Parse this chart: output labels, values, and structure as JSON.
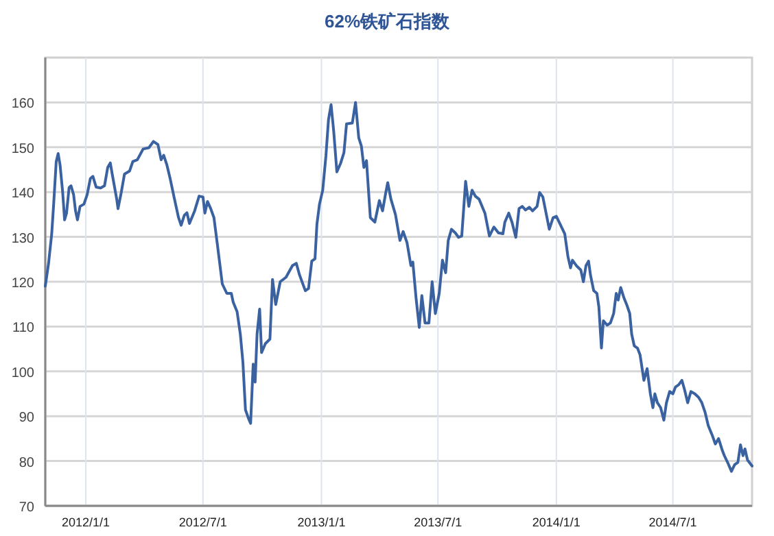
{
  "chart_data": {
    "type": "line",
    "title": "62%铁矿石指数",
    "x": [
      "2011-10-30",
      "2011-11-04",
      "2011-11-09",
      "2011-11-12",
      "2011-11-16",
      "2011-11-19",
      "2011-11-22",
      "2011-11-26",
      "2011-11-29",
      "2011-12-02",
      "2011-12-06",
      "2011-12-09",
      "2011-12-13",
      "2011-12-16",
      "2011-12-19",
      "2011-12-23",
      "2011-12-29",
      "2012-01-03",
      "2012-01-08",
      "2012-01-12",
      "2012-01-17",
      "2012-01-24",
      "2012-01-30",
      "2012-02-04",
      "2012-02-08",
      "2012-02-11",
      "2012-02-18",
      "2012-02-20",
      "2012-02-25",
      "2012-03-01",
      "2012-03-09",
      "2012-03-14",
      "2012-03-21",
      "2012-03-30",
      "2012-04-08",
      "2012-04-15",
      "2012-04-22",
      "2012-04-27",
      "2012-05-01",
      "2012-05-06",
      "2012-05-11",
      "2012-05-17",
      "2012-05-24",
      "2012-05-28",
      "2012-06-02",
      "2012-06-06",
      "2012-06-10",
      "2012-06-18",
      "2012-06-25",
      "2012-07-01",
      "2012-07-04",
      "2012-07-08",
      "2012-07-13",
      "2012-07-18",
      "2012-07-23",
      "2012-07-31",
      "2012-08-07",
      "2012-08-14",
      "2012-08-17",
      "2012-08-23",
      "2012-08-28",
      "2012-09-01",
      "2012-09-05",
      "2012-09-10",
      "2012-09-13",
      "2012-09-17",
      "2012-09-20",
      "2012-09-23",
      "2012-09-27",
      "2012-09-30",
      "2012-10-06",
      "2012-10-13",
      "2012-10-17",
      "2012-10-22",
      "2012-10-29",
      "2012-11-07",
      "2012-11-17",
      "2012-11-23",
      "2012-11-28",
      "2012-12-07",
      "2012-12-12",
      "2012-12-17",
      "2012-12-22",
      "2012-12-25",
      "2012-12-29",
      "2013-01-03",
      "2013-01-08",
      "2013-01-12",
      "2013-01-16",
      "2013-01-20",
      "2013-01-25",
      "2013-01-31",
      "2013-02-05",
      "2013-02-09",
      "2013-02-18",
      "2013-02-23",
      "2013-02-28",
      "2013-03-04",
      "2013-03-08",
      "2013-03-12",
      "2013-03-18",
      "2013-03-25",
      "2013-04-01",
      "2013-04-06",
      "2013-04-11",
      "2013-04-14",
      "2013-04-19",
      "2013-04-26",
      "2013-05-03",
      "2013-05-08",
      "2013-05-14",
      "2013-05-20",
      "2013-05-23",
      "2013-05-28",
      "2013-06-02",
      "2013-06-06",
      "2013-06-11",
      "2013-06-17",
      "2013-06-22",
      "2013-06-27",
      "2013-07-03",
      "2013-07-08",
      "2013-07-13",
      "2013-07-17",
      "2013-07-22",
      "2013-07-28",
      "2013-08-02",
      "2013-08-07",
      "2013-08-13",
      "2013-08-18",
      "2013-08-23",
      "2013-08-28",
      "2013-09-03",
      "2013-09-12",
      "2013-09-19",
      "2013-09-26",
      "2013-10-03",
      "2013-10-10",
      "2013-10-13",
      "2013-10-19",
      "2013-10-24",
      "2013-10-30",
      "2013-11-04",
      "2013-11-09",
      "2013-11-14",
      "2013-11-20",
      "2013-11-25",
      "2013-12-02",
      "2013-12-06",
      "2013-12-11",
      "2013-12-16",
      "2013-12-21",
      "2013-12-27",
      "2014-01-01",
      "2014-01-07",
      "2014-01-14",
      "2014-01-19",
      "2014-01-23",
      "2014-01-26",
      "2014-02-01",
      "2014-02-08",
      "2014-02-12",
      "2014-02-16",
      "2014-02-20",
      "2014-02-23",
      "2014-02-28",
      "2014-03-05",
      "2014-03-08",
      "2014-03-12",
      "2014-03-15",
      "2014-03-21",
      "2014-03-26",
      "2014-03-31",
      "2014-04-04",
      "2014-04-07",
      "2014-04-11",
      "2014-04-16",
      "2014-04-21",
      "2014-04-25",
      "2014-04-28",
      "2014-05-02",
      "2014-05-07",
      "2014-05-11",
      "2014-05-17",
      "2014-05-22",
      "2014-05-27",
      "2014-05-31",
      "2014-06-03",
      "2014-06-07",
      "2014-06-12",
      "2014-06-17",
      "2014-06-21",
      "2014-06-26",
      "2014-07-01",
      "2014-07-05",
      "2014-07-10",
      "2014-07-15",
      "2014-07-19",
      "2014-07-24",
      "2014-07-29",
      "2014-08-04",
      "2014-08-10",
      "2014-08-15",
      "2014-08-20",
      "2014-08-25",
      "2014-08-31",
      "2014-09-05",
      "2014-09-10",
      "2014-09-16",
      "2014-09-19",
      "2014-09-24",
      "2014-09-30",
      "2014-10-05",
      "2014-10-10",
      "2014-10-14",
      "2014-10-18",
      "2014-10-21",
      "2014-10-25",
      "2014-11-01"
    ],
    "series": [
      {
        "color": "#3b62a0",
        "values": [
          119,
          124,
          130.7,
          137.3,
          146.8,
          148.6,
          146,
          140,
          133.8,
          135.3,
          141,
          141.4,
          139.4,
          135.8,
          133.8,
          136.8,
          137.3,
          139.4,
          143,
          143.5,
          141.1,
          140.9,
          141.4,
          145.5,
          146.5,
          144,
          138.4,
          136.3,
          139.9,
          144,
          144.7,
          146.8,
          147.2,
          149.6,
          149.9,
          151.3,
          150.6,
          147.2,
          148.2,
          146,
          143,
          138.9,
          134.3,
          132.6,
          134.8,
          135.4,
          133,
          135.8,
          139.1,
          138.9,
          135.3,
          137.9,
          136.3,
          134.3,
          128.7,
          119.5,
          117.4,
          117.4,
          115.4,
          113.3,
          108.3,
          102.1,
          91.4,
          89.4,
          88.4,
          101.6,
          97.6,
          108.3,
          113.9,
          104.2,
          106.2,
          107.2,
          120.5,
          114.9,
          120,
          121,
          123.6,
          124.1,
          121.5,
          118,
          118.5,
          124.6,
          125.1,
          132.8,
          137.3,
          140.4,
          148.1,
          156.2,
          159.5,
          153.7,
          144.5,
          146.5,
          148.8,
          155.2,
          155.4,
          160,
          152.1,
          150.3,
          145.5,
          147,
          134.3,
          133.3,
          138.1,
          135.8,
          139.9,
          142.1,
          138.4,
          135,
          129.2,
          131.2,
          128.7,
          123.6,
          124.4,
          116.4,
          109.8,
          116.9,
          110.8,
          110.8,
          120,
          112.9,
          117.4,
          124.8,
          122,
          129.2,
          131.7,
          130.9,
          129.9,
          130.2,
          142.4,
          136.8,
          140.4,
          139.1,
          138.4,
          135.3,
          130.2,
          132.2,
          130.9,
          130.7,
          133.3,
          135.3,
          133.3,
          129.9,
          136.3,
          136.8,
          136,
          136.6,
          135.8,
          136.8,
          139.9,
          138.9,
          135.3,
          131.7,
          134.3,
          134.6,
          132.8,
          130.7,
          125.6,
          123.1,
          124.8,
          123.6,
          122.6,
          120,
          123.6,
          124.6,
          121.5,
          118,
          117.4,
          114.4,
          105.2,
          111.3,
          110.3,
          110.8,
          112.9,
          117.4,
          115.9,
          118.7,
          116.4,
          114.6,
          112.9,
          108.3,
          105.7,
          105.2,
          103.7,
          98,
          100.6,
          95,
          91.9,
          95,
          93,
          91.9,
          89.1,
          93,
          95.5,
          95,
          96.5,
          97,
          98,
          96,
          93,
          95.5,
          95,
          94.2,
          93,
          90.9,
          87.9,
          85.8,
          83.8,
          85,
          82.3,
          81.2,
          79.7,
          77.7,
          79.2,
          79.7,
          83.6,
          81.2,
          82.7,
          80.2,
          78.9
        ]
      }
    ],
    "xlim": [
      "2011-10-30",
      "2014-11-01"
    ],
    "xticks": [
      {
        "value": "2012-01-01",
        "label": "2012/1/1"
      },
      {
        "value": "2012-07-01",
        "label": "2012/7/1"
      },
      {
        "value": "2013-01-01",
        "label": "2013/1/1"
      },
      {
        "value": "2013-07-01",
        "label": "2013/7/1"
      },
      {
        "value": "2014-01-01",
        "label": "2014/1/1"
      },
      {
        "value": "2014-07-01",
        "label": "2014/7/1"
      }
    ],
    "ylim": [
      70,
      170
    ],
    "yticks": [
      70,
      80,
      90,
      100,
      110,
      120,
      130,
      140,
      150,
      160
    ],
    "grid": true
  }
}
